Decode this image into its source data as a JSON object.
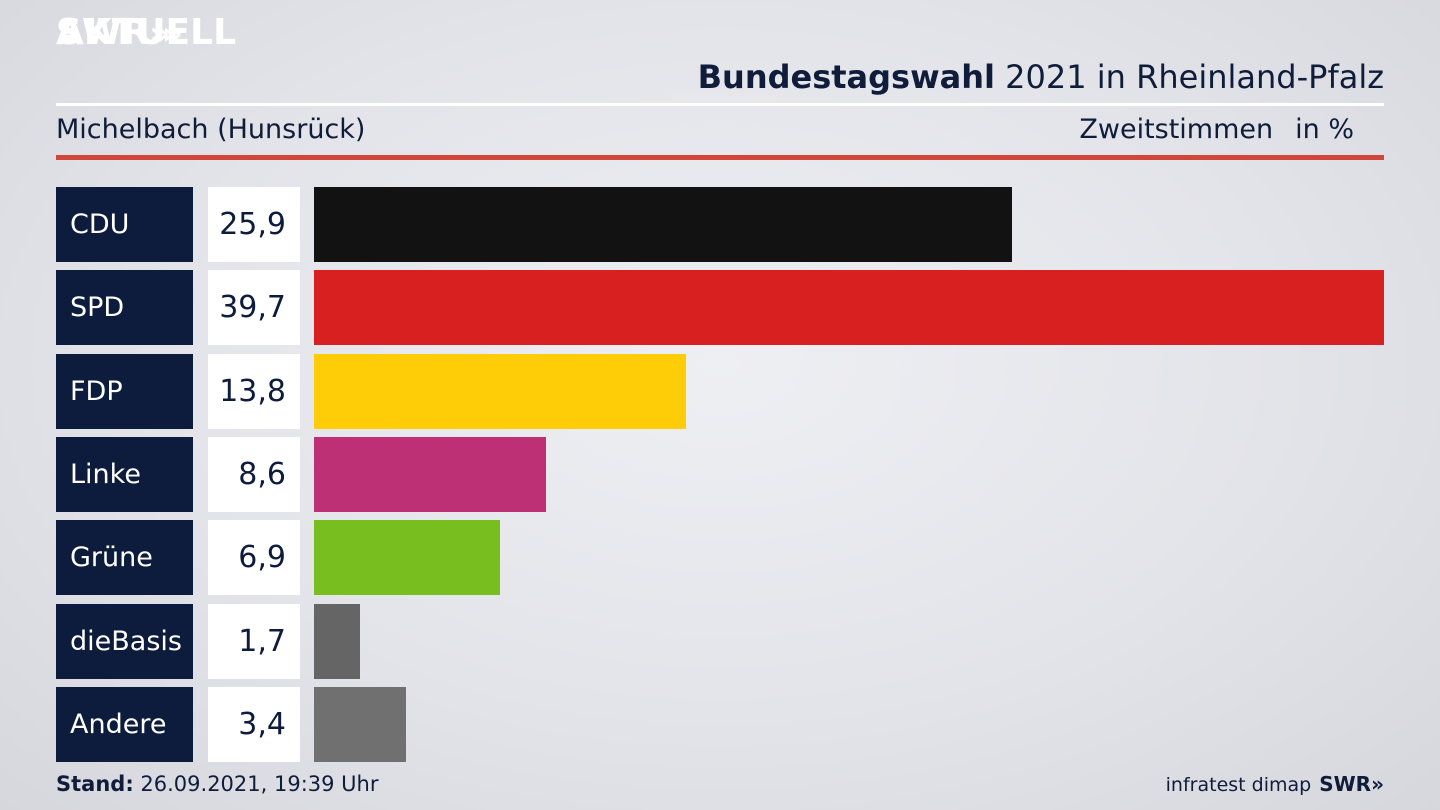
{
  "brand": {
    "line1": "SWR",
    "chevrons": "»",
    "line2": "AKTUELL"
  },
  "header": {
    "title_bold": "Bundestagswahl",
    "title_rest": " 2021 in Rheinland-Pfalz",
    "subtitle": "Michelbach (Hunsrück)",
    "measure": "Zweitstimmen",
    "unit": "in %"
  },
  "chart_data": {
    "type": "bar",
    "orientation": "horizontal",
    "categories": [
      "CDU",
      "SPD",
      "FDP",
      "Linke",
      "Grüne",
      "dieBasis",
      "Andere"
    ],
    "values": [
      25.9,
      39.7,
      13.8,
      8.6,
      6.9,
      1.7,
      3.4
    ],
    "labels": [
      "25,9",
      "39,7",
      "13,8",
      "8,6",
      "6,9",
      "1,7",
      "3,4"
    ],
    "colors": [
      "#121212",
      "#d82020",
      "#fecd08",
      "#be3075",
      "#78be1e",
      "#656565",
      "#707070"
    ],
    "grid": false
  },
  "footer": {
    "stand_label": "Stand:",
    "stand_value": " 26.09.2021, 19:39 Uhr",
    "source": "infratest dimap",
    "brand": "SWR»"
  }
}
